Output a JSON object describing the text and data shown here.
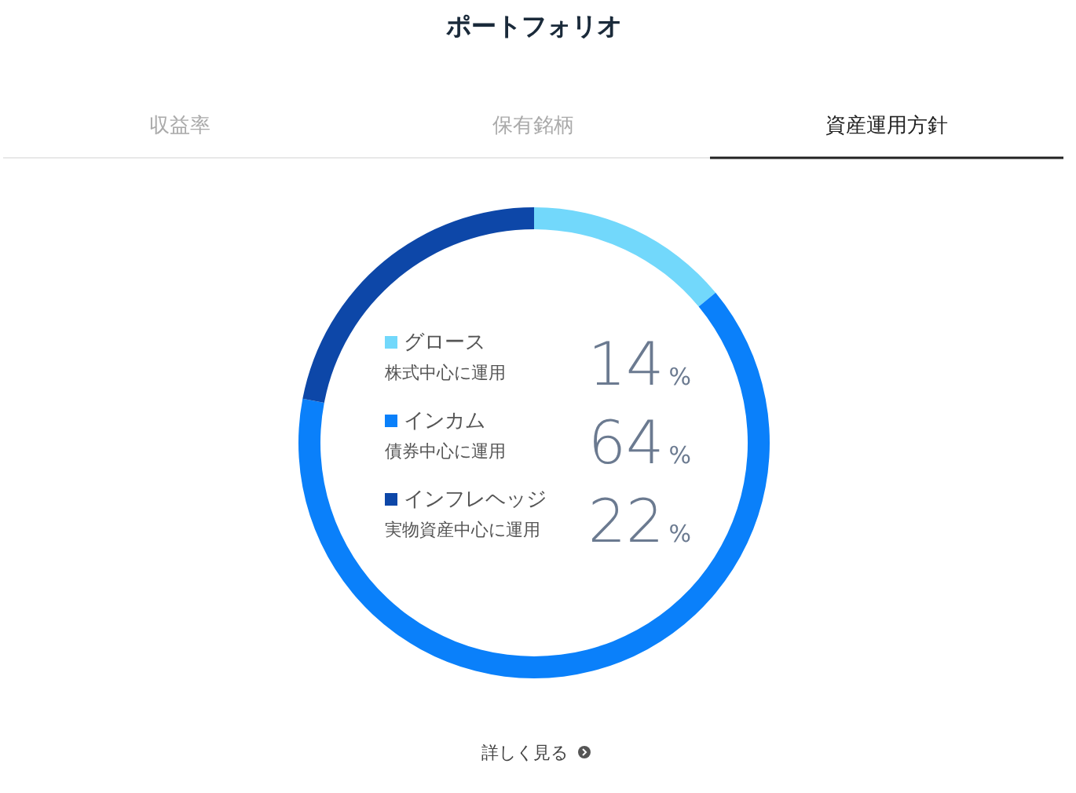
{
  "chart_data": {
    "type": "donut",
    "title": "ポートフォリオ",
    "categories": [
      "グロース",
      "インカム",
      "インフレヘッジ"
    ],
    "values": [
      14,
      64,
      22
    ],
    "value_labels": [
      "14%",
      "64%",
      "22%"
    ],
    "colors": [
      "#72d8fb",
      "#0a80fa",
      "#0d47a8"
    ],
    "legend": "center",
    "annotations": [
      "収益率",
      "保有銘柄",
      "資産運用方針",
      "株式中心に運用",
      "債券中心に運用",
      "実物資産中心に運用",
      "詳しく見る"
    ]
  }
}
